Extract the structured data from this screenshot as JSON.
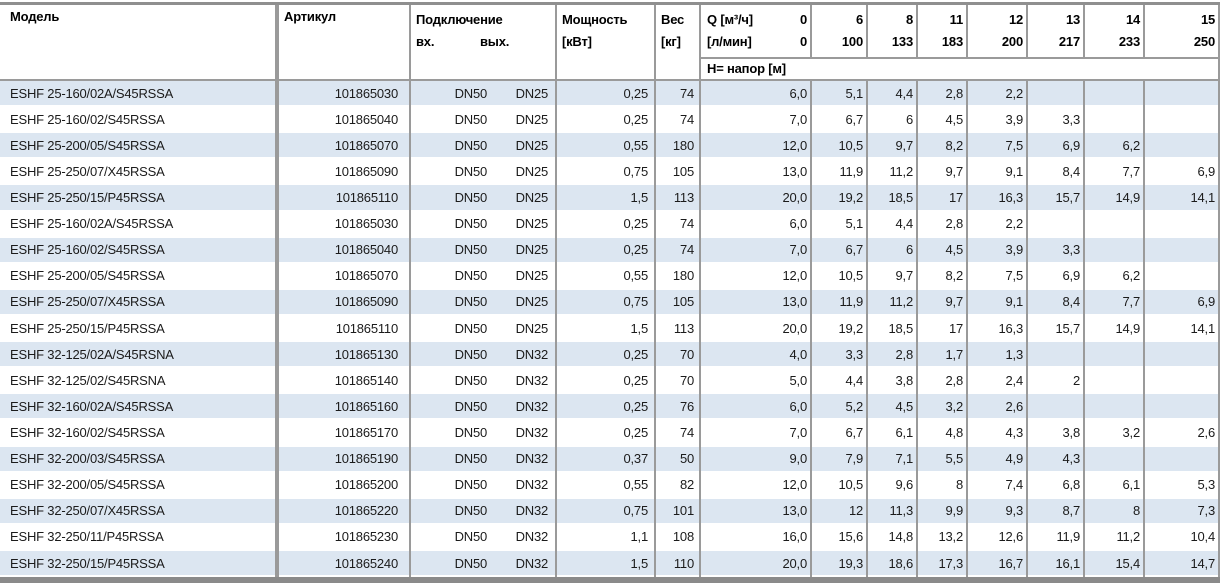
{
  "table": {
    "columns": {
      "model": "Модель",
      "article": "Артикул",
      "connection": "Подключение",
      "conn_in": "вх.",
      "conn_out": "вых.",
      "power_l1": "Мощность",
      "power_l2": "[кВт]",
      "weight_l1": "Вес",
      "weight_l2": "[кг]",
      "q_line1": "Q [м³/ч]",
      "q_zero1": "0",
      "q_line2": "[л/мин]",
      "q_zero2": "0",
      "head_label": "Н= напор [м]",
      "q_columns": [
        [
          "6",
          "100"
        ],
        [
          "8",
          "133"
        ],
        [
          "11",
          "183"
        ],
        [
          "12",
          "200"
        ],
        [
          "13",
          "217"
        ],
        [
          "14",
          "233"
        ],
        [
          "15",
          "250"
        ]
      ]
    },
    "rows": [
      {
        "model": "ESHF 25-160/02A/S45RSSA",
        "article": "101865030",
        "inlet": "DN50",
        "outlet": "DN25",
        "power": "0,25",
        "weight": "74",
        "head": [
          "6,0",
          "5,1",
          "4,4",
          "2,8",
          "2,2",
          "",
          "",
          ""
        ]
      },
      {
        "model": "ESHF 25-160/02/S45RSSA",
        "article": "101865040",
        "inlet": "DN50",
        "outlet": "DN25",
        "power": "0,25",
        "weight": "74",
        "head": [
          "7,0",
          "6,7",
          "6",
          "4,5",
          "3,9",
          "3,3",
          "",
          ""
        ]
      },
      {
        "model": "ESHF 25-200/05/S45RSSA",
        "article": "101865070",
        "inlet": "DN50",
        "outlet": "DN25",
        "power": "0,55",
        "weight": "180",
        "head": [
          "12,0",
          "10,5",
          "9,7",
          "8,2",
          "7,5",
          "6,9",
          "6,2",
          ""
        ]
      },
      {
        "model": "ESHF 25-250/07/X45RSSA",
        "article": "101865090",
        "inlet": "DN50",
        "outlet": "DN25",
        "power": "0,75",
        "weight": "105",
        "head": [
          "13,0",
          "11,9",
          "11,2",
          "9,7",
          "9,1",
          "8,4",
          "7,7",
          "6,9"
        ]
      },
      {
        "model": "ESHF 25-250/15/P45RSSA",
        "article": "101865110",
        "inlet": "DN50",
        "outlet": "DN25",
        "power": "1,5",
        "weight": "113",
        "head": [
          "20,0",
          "19,2",
          "18,5",
          "17",
          "16,3",
          "15,7",
          "14,9",
          "14,1"
        ]
      },
      {
        "model": "ESHF 25-160/02A/S45RSSA",
        "article": "101865030",
        "inlet": "DN50",
        "outlet": "DN25",
        "power": "0,25",
        "weight": "74",
        "head": [
          "6,0",
          "5,1",
          "4,4",
          "2,8",
          "2,2",
          "",
          "",
          ""
        ]
      },
      {
        "model": "ESHF 25-160/02/S45RSSA",
        "article": "101865040",
        "inlet": "DN50",
        "outlet": "DN25",
        "power": "0,25",
        "weight": "74",
        "head": [
          "7,0",
          "6,7",
          "6",
          "4,5",
          "3,9",
          "3,3",
          "",
          ""
        ]
      },
      {
        "model": "ESHF 25-200/05/S45RSSA",
        "article": "101865070",
        "inlet": "DN50",
        "outlet": "DN25",
        "power": "0,55",
        "weight": "180",
        "head": [
          "12,0",
          "10,5",
          "9,7",
          "8,2",
          "7,5",
          "6,9",
          "6,2",
          ""
        ]
      },
      {
        "model": "ESHF 25-250/07/X45RSSA",
        "article": "101865090",
        "inlet": "DN50",
        "outlet": "DN25",
        "power": "0,75",
        "weight": "105",
        "head": [
          "13,0",
          "11,9",
          "11,2",
          "9,7",
          "9,1",
          "8,4",
          "7,7",
          "6,9"
        ]
      },
      {
        "model": "ESHF 25-250/15/P45RSSA",
        "article": "101865110",
        "inlet": "DN50",
        "outlet": "DN25",
        "power": "1,5",
        "weight": "113",
        "head": [
          "20,0",
          "19,2",
          "18,5",
          "17",
          "16,3",
          "15,7",
          "14,9",
          "14,1"
        ]
      },
      {
        "model": "ESHF 32-125/02A/S45RSNA",
        "article": "101865130",
        "inlet": "DN50",
        "outlet": "DN32",
        "power": "0,25",
        "weight": "70",
        "head": [
          "4,0",
          "3,3",
          "2,8",
          "1,7",
          "1,3",
          "",
          "",
          ""
        ]
      },
      {
        "model": "ESHF 32-125/02/S45RSNA",
        "article": "101865140",
        "inlet": "DN50",
        "outlet": "DN32",
        "power": "0,25",
        "weight": "70",
        "head": [
          "5,0",
          "4,4",
          "3,8",
          "2,8",
          "2,4",
          "2",
          "",
          ""
        ]
      },
      {
        "model": "ESHF 32-160/02A/S45RSSA",
        "article": "101865160",
        "inlet": "DN50",
        "outlet": "DN32",
        "power": "0,25",
        "weight": "76",
        "head": [
          "6,0",
          "5,2",
          "4,5",
          "3,2",
          "2,6",
          "",
          "",
          ""
        ]
      },
      {
        "model": "ESHF 32-160/02/S45RSSA",
        "article": "101865170",
        "inlet": "DN50",
        "outlet": "DN32",
        "power": "0,25",
        "weight": "74",
        "head": [
          "7,0",
          "6,7",
          "6,1",
          "4,8",
          "4,3",
          "3,8",
          "3,2",
          "2,6"
        ]
      },
      {
        "model": "ESHF 32-200/03/S45RSSA",
        "article": "101865190",
        "inlet": "DN50",
        "outlet": "DN32",
        "power": "0,37",
        "weight": "50",
        "head": [
          "9,0",
          "7,9",
          "7,1",
          "5,5",
          "4,9",
          "4,3",
          "",
          ""
        ]
      },
      {
        "model": "ESHF 32-200/05/S45RSSA",
        "article": "101865200",
        "inlet": "DN50",
        "outlet": "DN32",
        "power": "0,55",
        "weight": "82",
        "head": [
          "12,0",
          "10,5",
          "9,6",
          "8",
          "7,4",
          "6,8",
          "6,1",
          "5,3"
        ]
      },
      {
        "model": "ESHF 32-250/07/X45RSSA",
        "article": "101865220",
        "inlet": "DN50",
        "outlet": "DN32",
        "power": "0,75",
        "weight": "101",
        "head": [
          "13,0",
          "12",
          "11,3",
          "9,9",
          "9,3",
          "8,7",
          "8",
          "7,3"
        ]
      },
      {
        "model": "ESHF 32-250/11/P45RSSA",
        "article": "101865230",
        "inlet": "DN50",
        "outlet": "DN32",
        "power": "1,1",
        "weight": "108",
        "head": [
          "16,0",
          "15,6",
          "14,8",
          "13,2",
          "12,6",
          "11,9",
          "11,2",
          "10,4"
        ]
      },
      {
        "model": "ESHF 32-250/15/P45RSSA",
        "article": "101865240",
        "inlet": "DN50",
        "outlet": "DN32",
        "power": "1,5",
        "weight": "110",
        "head": [
          "20,0",
          "19,3",
          "18,6",
          "17,3",
          "16,7",
          "16,1",
          "15,4",
          "14,7"
        ]
      }
    ]
  },
  "colors": {
    "row_alt_blue": "#dce6f1",
    "grid_line": "#9a9a9a",
    "top_rule": "#8f8f8f",
    "bottom_rule": "#8a8a8a",
    "text": "#1b1b1b"
  }
}
